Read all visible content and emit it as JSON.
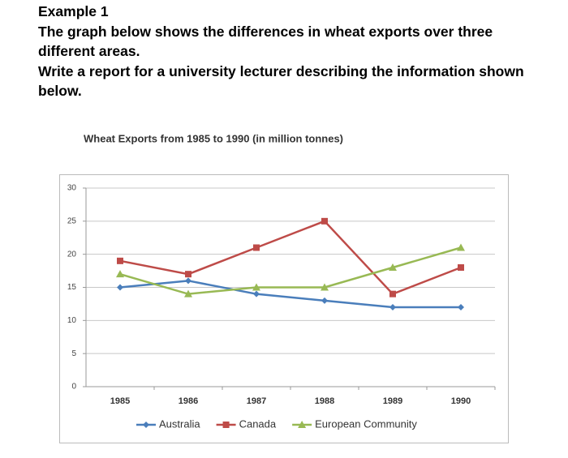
{
  "header": {
    "title": "Example 1",
    "paragraphs": [
      "The graph below shows the differences in wheat exports over three different areas.",
      "Write a report for a university lecturer describing the information shown below."
    ]
  },
  "chart_data": {
    "type": "line",
    "title": "Wheat Exports from 1985 to 1990 (in million tonnes)",
    "categories": [
      "1985",
      "1986",
      "1987",
      "1988",
      "1989",
      "1990"
    ],
    "series": [
      {
        "name": "Australia",
        "color": "#4a7ebb",
        "marker": "diamond",
        "values": [
          15,
          16,
          14,
          13,
          12,
          12
        ]
      },
      {
        "name": "Canada",
        "color": "#be4b48",
        "marker": "square",
        "values": [
          19,
          17,
          21,
          25,
          14,
          18
        ]
      },
      {
        "name": "European Community",
        "color": "#98b954",
        "marker": "triangle",
        "values": [
          17,
          14,
          15,
          15,
          18,
          21
        ]
      }
    ],
    "ylim": [
      0,
      30
    ],
    "yticks": [
      0,
      5,
      10,
      15,
      20,
      25,
      30
    ],
    "grid": true,
    "legend": "bottom"
  }
}
